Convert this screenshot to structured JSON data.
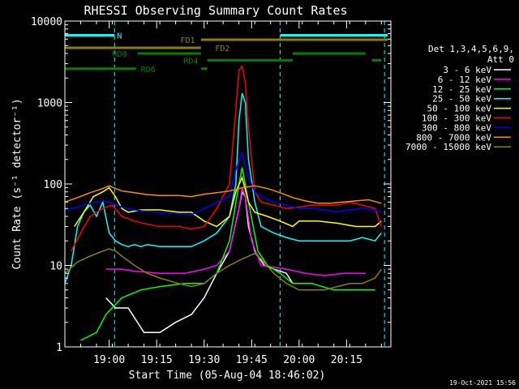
{
  "chart_data": {
    "type": "line",
    "title": "RHESSI Observing Summary Count Rates",
    "xlabel": "Start Time (05-Aug-04 18:46:02)",
    "ylabel": "Count Rate (s⁻¹ detector⁻¹)",
    "x_unit": "minutes since 18:46:02",
    "xlim": [
      0,
      103
    ],
    "ylim": [
      1,
      10000
    ],
    "yscale": "log",
    "x_ticks": [
      {
        "t": 14,
        "label": "19:00"
      },
      {
        "t": 29,
        "label": "19:15"
      },
      {
        "t": 44,
        "label": "19:30"
      },
      {
        "t": 59,
        "label": "19:45"
      },
      {
        "t": 74,
        "label": "20:00"
      },
      {
        "t": 89,
        "label": "20:15"
      }
    ],
    "y_ticks": [
      {
        "v": 1,
        "label": "1"
      },
      {
        "v": 10,
        "label": "10"
      },
      {
        "v": 100,
        "label": "100"
      },
      {
        "v": 1000,
        "label": "1000"
      },
      {
        "v": 10000,
        "label": "10000"
      }
    ],
    "legend_header": [
      "Det 1,3,4,5,6,9,",
      "Att 0"
    ],
    "series": [
      {
        "name": "3 - 6 keV",
        "color": "#ffffff",
        "points": [
          [
            13,
            4
          ],
          [
            16,
            3
          ],
          [
            20,
            3
          ],
          [
            25,
            1.5
          ],
          [
            30,
            1.5
          ],
          [
            35,
            2
          ],
          [
            40,
            2.5
          ],
          [
            44,
            4
          ],
          [
            48,
            8
          ],
          [
            52,
            15
          ],
          [
            55,
            50
          ],
          [
            56,
            80
          ],
          [
            57,
            70
          ],
          [
            58,
            30
          ],
          [
            60,
            15
          ],
          [
            63,
            10
          ],
          [
            66,
            9
          ],
          [
            70,
            8
          ],
          [
            72,
            6
          ]
        ]
      },
      {
        "name": "6 - 12 keV",
        "color": "#ff00ff",
        "points": [
          [
            13,
            9
          ],
          [
            18,
            9
          ],
          [
            22,
            8.5
          ],
          [
            30,
            8
          ],
          [
            38,
            8
          ],
          [
            44,
            9
          ],
          [
            48,
            10
          ],
          [
            52,
            15
          ],
          [
            55,
            50
          ],
          [
            56,
            90
          ],
          [
            57,
            70
          ],
          [
            59,
            20
          ],
          [
            62,
            10
          ],
          [
            66,
            9.5
          ],
          [
            70,
            9
          ],
          [
            76,
            8
          ],
          [
            82,
            7.5
          ],
          [
            88,
            8
          ],
          [
            95,
            8
          ]
        ]
      },
      {
        "name": "12 - 25 keV",
        "color": "#00ff00",
        "points": [
          [
            5,
            1.2
          ],
          [
            10,
            1.5
          ],
          [
            13,
            2.5
          ],
          [
            18,
            4
          ],
          [
            24,
            5
          ],
          [
            30,
            5.5
          ],
          [
            38,
            6
          ],
          [
            44,
            6
          ],
          [
            48,
            8
          ],
          [
            52,
            20
          ],
          [
            55,
            100
          ],
          [
            56,
            160
          ],
          [
            58,
            60
          ],
          [
            61,
            15
          ],
          [
            64,
            10
          ],
          [
            68,
            8
          ],
          [
            72,
            6
          ],
          [
            78,
            6
          ],
          [
            85,
            5
          ],
          [
            92,
            5
          ],
          [
            98,
            5
          ]
        ]
      },
      {
        "name": "25 - 50 keV",
        "color": "#00ffff",
        "points": [
          [
            0,
            6
          ],
          [
            2,
            10
          ],
          [
            4,
            30
          ],
          [
            6,
            45
          ],
          [
            8,
            55
          ],
          [
            10,
            40
          ],
          [
            12,
            60
          ],
          [
            14,
            25
          ],
          [
            16,
            20
          ],
          [
            18,
            18
          ],
          [
            20,
            17
          ],
          [
            22,
            18
          ],
          [
            24,
            17
          ],
          [
            26,
            18
          ],
          [
            30,
            17
          ],
          [
            36,
            17
          ],
          [
            40,
            17
          ],
          [
            44,
            20
          ],
          [
            48,
            25
          ],
          [
            52,
            40
          ],
          [
            54,
            100
          ],
          [
            55,
            600
          ],
          [
            56,
            1300
          ],
          [
            57,
            1000
          ],
          [
            58,
            200
          ],
          [
            60,
            60
          ],
          [
            62,
            30
          ],
          [
            66,
            25
          ],
          [
            70,
            22
          ],
          [
            74,
            20
          ],
          [
            78,
            20
          ],
          [
            82,
            20
          ],
          [
            86,
            20
          ],
          [
            90,
            20
          ],
          [
            94,
            22
          ],
          [
            98,
            20
          ],
          [
            100,
            25
          ]
        ]
      },
      {
        "name": "50 - 100 keV",
        "color": "#ffff00",
        "points": [
          [
            3,
            30
          ],
          [
            6,
            45
          ],
          [
            9,
            70
          ],
          [
            12,
            80
          ],
          [
            14,
            90
          ],
          [
            16,
            70
          ],
          [
            18,
            50
          ],
          [
            20,
            45
          ],
          [
            24,
            48
          ],
          [
            30,
            48
          ],
          [
            36,
            45
          ],
          [
            40,
            45
          ],
          [
            44,
            35
          ],
          [
            48,
            30
          ],
          [
            52,
            40
          ],
          [
            54,
            80
          ],
          [
            56,
            120
          ],
          [
            58,
            60
          ],
          [
            60,
            45
          ],
          [
            64,
            40
          ],
          [
            68,
            35
          ],
          [
            72,
            30
          ],
          [
            74,
            35
          ],
          [
            80,
            35
          ],
          [
            86,
            33
          ],
          [
            92,
            30
          ],
          [
            98,
            30
          ],
          [
            100,
            35
          ]
        ]
      },
      {
        "name": "100 - 300 keV",
        "color": "#ff0000",
        "points": [
          [
            2,
            15
          ],
          [
            5,
            25
          ],
          [
            8,
            40
          ],
          [
            12,
            50
          ],
          [
            15,
            55
          ],
          [
            18,
            40
          ],
          [
            22,
            35
          ],
          [
            26,
            32
          ],
          [
            30,
            30
          ],
          [
            36,
            30
          ],
          [
            40,
            28
          ],
          [
            44,
            30
          ],
          [
            48,
            50
          ],
          [
            52,
            100
          ],
          [
            54,
            800
          ],
          [
            55,
            2500
          ],
          [
            56,
            2800
          ],
          [
            57,
            1800
          ],
          [
            58,
            500
          ],
          [
            60,
            80
          ],
          [
            62,
            60
          ],
          [
            66,
            55
          ],
          [
            70,
            50
          ],
          [
            74,
            52
          ],
          [
            78,
            55
          ],
          [
            82,
            55
          ],
          [
            86,
            55
          ],
          [
            90,
            60
          ],
          [
            94,
            55
          ],
          [
            98,
            50
          ],
          [
            100,
            30
          ]
        ]
      },
      {
        "name": "300 - 800 keV",
        "color": "#0000ff",
        "points": [
          [
            0,
            48
          ],
          [
            4,
            52
          ],
          [
            8,
            58
          ],
          [
            12,
            62
          ],
          [
            15,
            58
          ],
          [
            18,
            52
          ],
          [
            22,
            48
          ],
          [
            26,
            46
          ],
          [
            30,
            44
          ],
          [
            36,
            43
          ],
          [
            40,
            42
          ],
          [
            44,
            50
          ],
          [
            48,
            60
          ],
          [
            52,
            70
          ],
          [
            54,
            150
          ],
          [
            56,
            240
          ],
          [
            58,
            120
          ],
          [
            60,
            80
          ],
          [
            62,
            70
          ],
          [
            66,
            60
          ],
          [
            70,
            55
          ],
          [
            74,
            50
          ],
          [
            78,
            50
          ],
          [
            82,
            48
          ],
          [
            86,
            46
          ],
          [
            90,
            48
          ],
          [
            94,
            50
          ],
          [
            98,
            48
          ],
          [
            100,
            45
          ]
        ]
      },
      {
        "name": "800 - 7000 keV",
        "color": "#ff8c00",
        "points": [
          [
            0,
            60
          ],
          [
            4,
            68
          ],
          [
            8,
            78
          ],
          [
            12,
            88
          ],
          [
            14,
            95
          ],
          [
            16,
            88
          ],
          [
            18,
            82
          ],
          [
            22,
            78
          ],
          [
            26,
            74
          ],
          [
            30,
            72
          ],
          [
            36,
            72
          ],
          [
            40,
            70
          ],
          [
            44,
            75
          ],
          [
            48,
            78
          ],
          [
            52,
            82
          ],
          [
            56,
            90
          ],
          [
            60,
            95
          ],
          [
            64,
            88
          ],
          [
            68,
            78
          ],
          [
            72,
            68
          ],
          [
            76,
            62
          ],
          [
            80,
            58
          ],
          [
            84,
            58
          ],
          [
            88,
            60
          ],
          [
            92,
            62
          ],
          [
            96,
            64
          ],
          [
            100,
            58
          ]
        ]
      },
      {
        "name": "7000 - 15000 keV",
        "color": "#8b8000",
        "points": [
          [
            0,
            8
          ],
          [
            4,
            11
          ],
          [
            8,
            13
          ],
          [
            12,
            15
          ],
          [
            14,
            16
          ],
          [
            16,
            15
          ],
          [
            18,
            13
          ],
          [
            22,
            10
          ],
          [
            26,
            8
          ],
          [
            30,
            7
          ],
          [
            36,
            6
          ],
          [
            40,
            5.5
          ],
          [
            44,
            6
          ],
          [
            48,
            8
          ],
          [
            52,
            10
          ],
          [
            56,
            12
          ],
          [
            60,
            14
          ],
          [
            62,
            12
          ],
          [
            66,
            8
          ],
          [
            70,
            6
          ],
          [
            74,
            5
          ],
          [
            78,
            5
          ],
          [
            82,
            5
          ],
          [
            86,
            5.5
          ],
          [
            90,
            6
          ],
          [
            94,
            6
          ],
          [
            98,
            7
          ],
          [
            100,
            9
          ]
        ]
      }
    ],
    "flags": [
      {
        "label": "N",
        "color": "#00ffff",
        "value": 6700,
        "segments": [
          [
            0,
            15.7
          ],
          [
            68,
            102
          ]
        ],
        "label_t": 16.5
      },
      {
        "label": "FD1",
        "color": "#8b8000",
        "value": 5900,
        "segments": [
          [
            43,
            102
          ]
        ],
        "label_t": 36.5
      },
      {
        "label": "FD2",
        "color": "#8b8000",
        "value": 4700,
        "segments": [
          [
            0,
            43
          ]
        ],
        "label_t": 47.5
      },
      {
        "label": "RD0",
        "color": "#008000",
        "value": 4000,
        "segments": [
          [
            23,
            43
          ],
          [
            72,
            95
          ]
        ],
        "label_t": 15
      },
      {
        "label": "RD4",
        "color": "#008000",
        "value": 3300,
        "segments": [
          [
            45,
            72
          ],
          [
            97,
            100
          ]
        ],
        "label_t": 37.5
      },
      {
        "label": "RD6",
        "color": "#008000",
        "value": 2600,
        "segments": [
          [
            0,
            22.5
          ],
          [
            43,
            45
          ]
        ],
        "label_t": 24
      }
    ],
    "vlines_t": [
      15.7,
      68,
      101
    ],
    "timestamp": "19-Oct-2021 15:56"
  }
}
